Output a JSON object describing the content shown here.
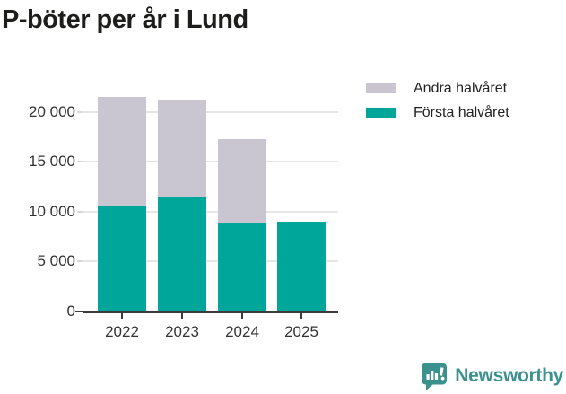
{
  "title": "P-böter per år i Lund",
  "legend": {
    "items": [
      {
        "label": "Andra halvåret",
        "color": "#c9c6d2"
      },
      {
        "label": "Första halvåret",
        "color": "#00a69a"
      }
    ]
  },
  "chart_data": {
    "type": "bar",
    "stacked": true,
    "title": "P-böter per år i Lund",
    "categories": [
      "2022",
      "2023",
      "2024",
      "2025"
    ],
    "series": [
      {
        "name": "Första halvåret",
        "color": "#00a69a",
        "values": [
          10600,
          11400,
          8900,
          9000
        ]
      },
      {
        "name": "Andra halvåret",
        "color": "#c9c6d2",
        "values": [
          10850,
          9800,
          8350,
          0
        ]
      }
    ],
    "totals": [
      21450,
      21200,
      17250,
      9000
    ],
    "xlabel": "",
    "ylabel": "",
    "ylim": [
      0,
      20000
    ],
    "yticks": [
      0,
      5000,
      10000,
      15000,
      20000
    ],
    "ytick_labels": [
      "0",
      "5 000",
      "10 000",
      "15 000",
      "20 000"
    ],
    "grid": "horizontal",
    "legend_position": "top-right"
  },
  "colors": {
    "grid": "#e6e6e6",
    "axis": "#3a3a3a",
    "ytick_minor": "#d8d8d8",
    "text": "#333333",
    "title": "#1d1d1b"
  },
  "brand": {
    "name": "Newsworthy",
    "color": "#3b918d",
    "icon": "newsworthy-logo-icon"
  }
}
